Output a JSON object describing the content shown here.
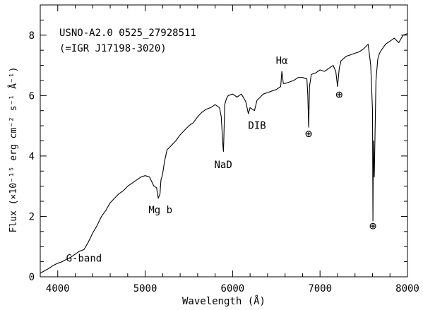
{
  "chart_data": {
    "type": "line",
    "title_lines": [
      "USNO-A2.0 0525_27928511",
      "(=IGR J17198-3020)"
    ],
    "xlabel": "Wavelength (Å)",
    "ylabel": "Flux (×10⁻¹⁵ erg cm⁻² s⁻¹ Å⁻¹)",
    "xlim": [
      3800,
      8000
    ],
    "ylim": [
      0,
      9
    ],
    "x_ticks": [
      4000,
      5000,
      6000,
      7000,
      8000
    ],
    "y_ticks": [
      0,
      2,
      4,
      6,
      8
    ],
    "grid": false,
    "line_color": "#000000",
    "annotations": [
      {
        "text": "G-band",
        "x": 4300,
        "y": 0.5
      },
      {
        "text": "Mg b",
        "x": 5175,
        "y": 2.1
      },
      {
        "text": "NaD",
        "x": 5893,
        "y": 3.6
      },
      {
        "text": "DIB",
        "x": 6280,
        "y": 4.9
      },
      {
        "text": "Hα",
        "x": 6563,
        "y": 7.05
      },
      {
        "text": "⊕",
        "x": 6870,
        "y": 4.6
      },
      {
        "text": "⊕",
        "x": 7220,
        "y": 5.9
      },
      {
        "text": "⊕",
        "x": 7605,
        "y": 1.55
      }
    ],
    "series": [
      {
        "x": [
          3800,
          3850,
          3900,
          3950,
          4000,
          4050,
          4100,
          4150,
          4200,
          4250,
          4300,
          4350,
          4400,
          4450,
          4500,
          4550,
          4600,
          4650,
          4700,
          4750,
          4800,
          4850,
          4900,
          4950,
          5000,
          5050,
          5100,
          5130,
          5150,
          5170,
          5180,
          5200,
          5220,
          5250,
          5300,
          5350,
          5400,
          5450,
          5500,
          5550,
          5600,
          5650,
          5700,
          5750,
          5800,
          5850,
          5870,
          5890,
          5895,
          5900,
          5910,
          5930,
          5950,
          6000,
          6050,
          6100,
          6150,
          6180,
          6200,
          6250,
          6280,
          6300,
          6350,
          6400,
          6450,
          6500,
          6550,
          6563,
          6580,
          6600,
          6650,
          6700,
          6750,
          6800,
          6850,
          6860,
          6870,
          6880,
          6900,
          6950,
          7000,
          7050,
          7100,
          7150,
          7180,
          7200,
          7220,
          7240,
          7260,
          7300,
          7350,
          7400,
          7450,
          7500,
          7550,
          7580,
          7600,
          7605,
          7610,
          7620,
          7640,
          7660,
          7680,
          7700,
          7750,
          7800,
          7850,
          7900,
          7950,
          8000
        ],
        "y": [
          0.12,
          0.2,
          0.28,
          0.38,
          0.45,
          0.5,
          0.58,
          0.65,
          0.75,
          0.85,
          0.9,
          1.15,
          1.45,
          1.7,
          2.0,
          2.2,
          2.45,
          2.6,
          2.75,
          2.85,
          3.0,
          3.1,
          3.2,
          3.3,
          3.35,
          3.3,
          3.0,
          2.95,
          2.6,
          2.75,
          3.2,
          3.4,
          3.8,
          4.2,
          4.35,
          4.5,
          4.7,
          4.85,
          5.0,
          5.1,
          5.3,
          5.45,
          5.55,
          5.6,
          5.7,
          5.6,
          5.3,
          4.3,
          4.15,
          4.6,
          5.7,
          5.9,
          6.0,
          6.05,
          5.95,
          6.05,
          5.8,
          5.4,
          5.6,
          5.5,
          5.85,
          5.9,
          6.05,
          6.1,
          6.15,
          6.2,
          6.3,
          6.8,
          6.4,
          6.4,
          6.45,
          6.5,
          6.6,
          6.6,
          6.55,
          6.0,
          4.95,
          6.3,
          6.7,
          6.75,
          6.85,
          6.8,
          6.9,
          7.0,
          6.8,
          6.3,
          6.9,
          7.15,
          7.2,
          7.3,
          7.35,
          7.4,
          7.45,
          7.55,
          7.7,
          7.0,
          5.5,
          1.85,
          4.5,
          3.3,
          6.5,
          7.2,
          7.4,
          7.5,
          7.7,
          7.8,
          7.9,
          7.75,
          8.0,
          8.05
        ]
      }
    ]
  }
}
